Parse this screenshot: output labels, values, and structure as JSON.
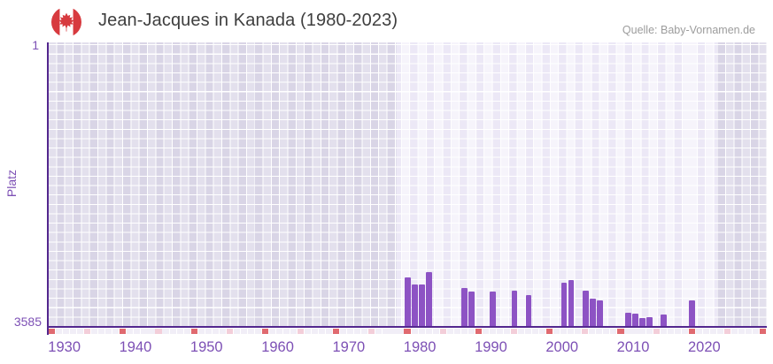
{
  "header": {
    "title": "Jean-Jacques in Kanada (1980-2023)",
    "flag_icon": "canada-flag-icon",
    "source": "Quelle: Baby-Vornamen.de"
  },
  "chart_data": {
    "type": "bar",
    "title": "Jean-Jacques in Kanada (1980-2023)",
    "xlabel": "",
    "ylabel": "Platz",
    "y_axis": {
      "top_label": "1",
      "bottom_label": "3585",
      "best_rank": 1,
      "worst_rank": 3585,
      "inverted": true,
      "note": "rank 1 at top, bars grow upward from rank 3585 baseline"
    },
    "x_axis": {
      "start_year": 1928,
      "end_year": 2029,
      "tick_years": [
        1930,
        1940,
        1950,
        1960,
        1970,
        1980,
        1990,
        2000,
        2010,
        2020
      ]
    },
    "highlight_band": {
      "from_year": 1977,
      "to_year": 2022
    },
    "series": [
      {
        "name": "Platz von Jean-Jacques",
        "points": [
          {
            "year": 1978,
            "rank": 2970
          },
          {
            "year": 1979,
            "rank": 3060
          },
          {
            "year": 1980,
            "rank": 3060
          },
          {
            "year": 1981,
            "rank": 2905
          },
          {
            "year": 1986,
            "rank": 3100
          },
          {
            "year": 1987,
            "rank": 3145
          },
          {
            "year": 1990,
            "rank": 3150
          },
          {
            "year": 1993,
            "rank": 3135
          },
          {
            "year": 1995,
            "rank": 3190
          },
          {
            "year": 2000,
            "rank": 3040
          },
          {
            "year": 2001,
            "rank": 3005
          },
          {
            "year": 2003,
            "rank": 3140
          },
          {
            "year": 2004,
            "rank": 3235
          },
          {
            "year": 2005,
            "rank": 3265
          },
          {
            "year": 2009,
            "rank": 3415
          },
          {
            "year": 2010,
            "rank": 3430
          },
          {
            "year": 2011,
            "rank": 3480
          },
          {
            "year": 2012,
            "rank": 3470
          },
          {
            "year": 2014,
            "rank": 3440
          },
          {
            "year": 2018,
            "rank": 3265
          }
        ]
      }
    ],
    "axis_markers": {
      "red_years": [
        1928,
        1938,
        1948,
        1958,
        1968,
        1978,
        1988,
        1998,
        2008,
        2018,
        2028
      ],
      "pink_years": [
        1933,
        1943,
        1953,
        1963,
        1973,
        1983,
        1993,
        2003,
        2013,
        2023
      ]
    },
    "legend": "none",
    "colors": {
      "bar": "#8d53c4",
      "axis_line": "#53278e",
      "tick_labels": "#7d50b5",
      "title_text": "#3e3e3e",
      "source_text": "#9c9c9c",
      "marker_red": "#e06a70",
      "marker_pink": "#f3ced9",
      "marker_base": "#f1eef7",
      "flag_red": "#d73a3f"
    }
  }
}
